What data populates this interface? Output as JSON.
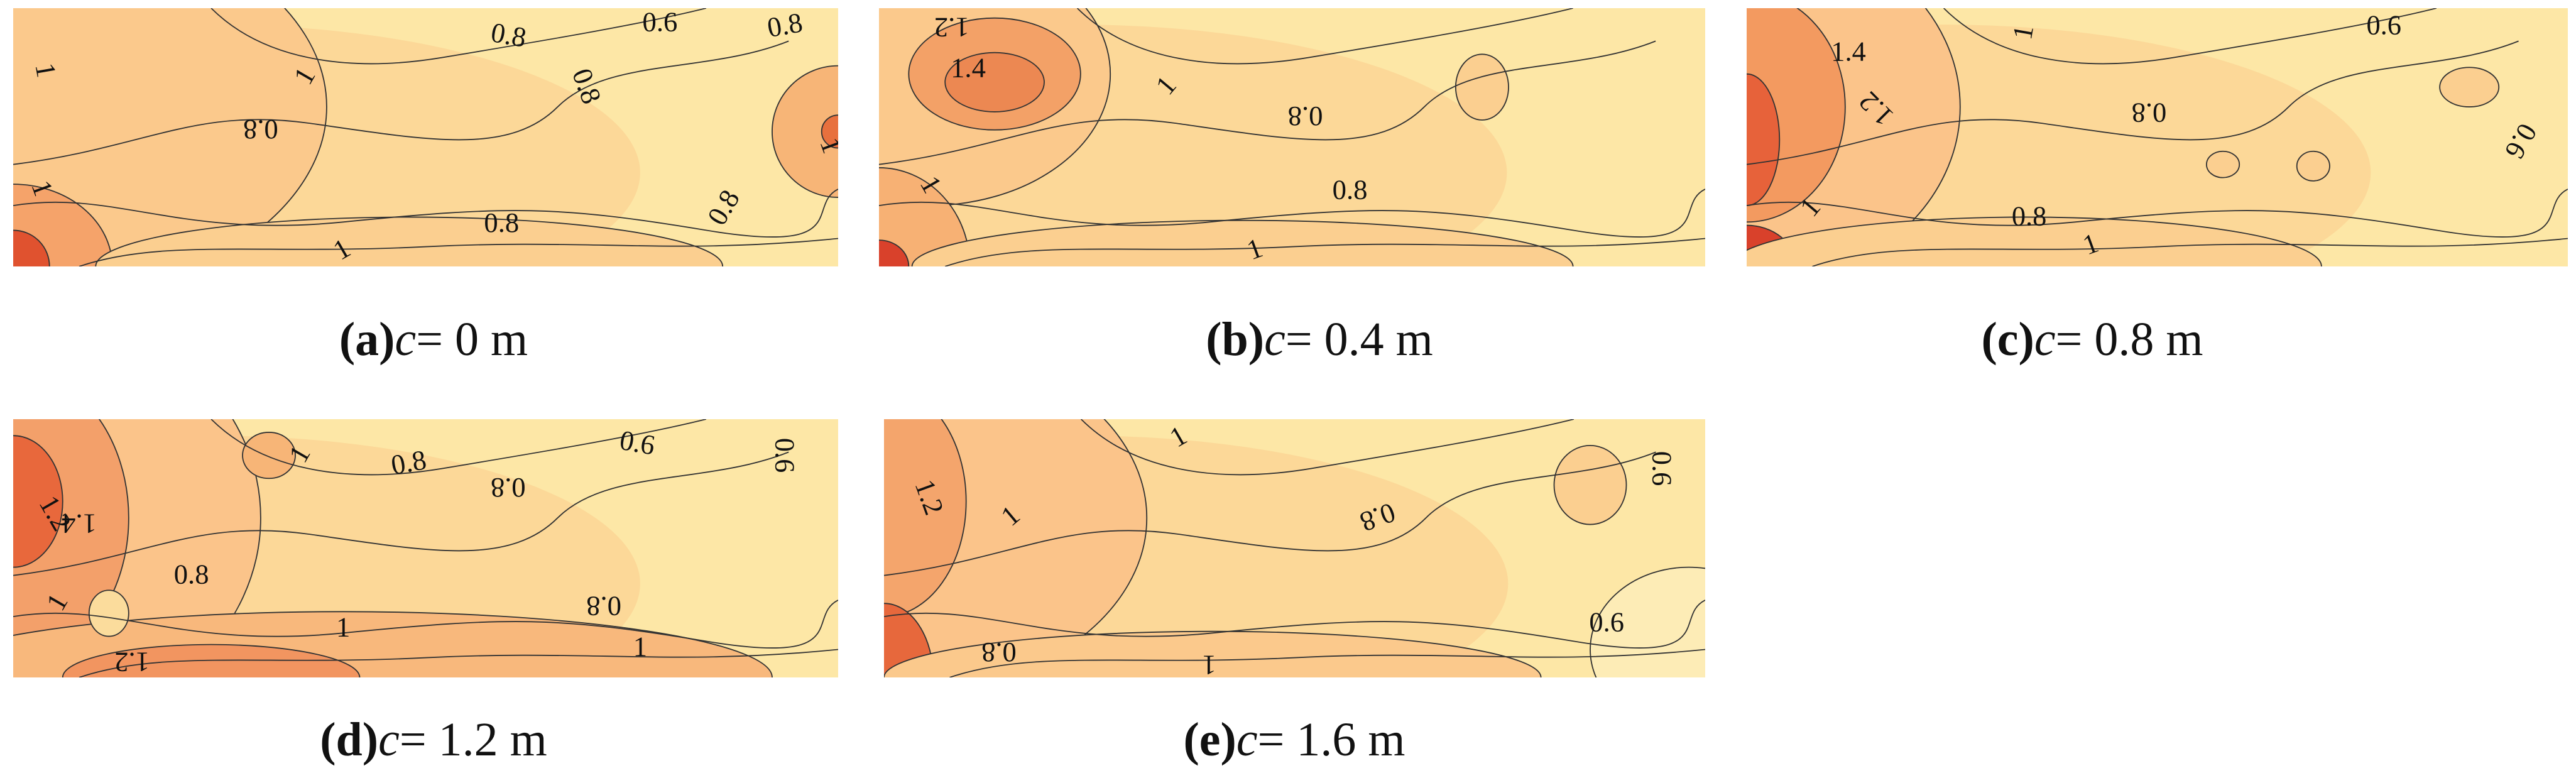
{
  "panels": [
    {
      "letter": "(a)",
      "variable": "c",
      "rest": "= 0 m",
      "contour_labels": [
        "1",
        "0.8",
        "0.6",
        "0.8",
        "0.8",
        "1",
        "0.8",
        "1",
        "0.8",
        "0.8",
        "1",
        "1"
      ]
    },
    {
      "letter": "(b)",
      "variable": "c",
      "rest": "= 0.4 m",
      "contour_labels": [
        "1.2",
        "1.4",
        "1",
        "0.8",
        "0.8",
        "1",
        "1"
      ]
    },
    {
      "letter": "(c)",
      "variable": "c",
      "rest": "= 0.8 m",
      "contour_labels": [
        "1.4",
        "1",
        "1.2",
        "0.8",
        "0.6",
        "0.6",
        "0.8",
        "1",
        "1"
      ]
    },
    {
      "letter": "(d)",
      "variable": "c",
      "rest": "= 1.2 m",
      "contour_labels": [
        "1",
        "0.8",
        "0.8",
        "0.6",
        "0.6",
        "1.2",
        "1.4",
        "0.8",
        "0.8",
        "1",
        "1",
        "1",
        "1.2"
      ]
    },
    {
      "letter": "(e)",
      "variable": "c",
      "rest": "= 1.6 m",
      "contour_labels": [
        "1",
        "0.8",
        "0.6",
        "1.2",
        "1",
        "0.8",
        "0.6",
        "1"
      ]
    }
  ]
}
